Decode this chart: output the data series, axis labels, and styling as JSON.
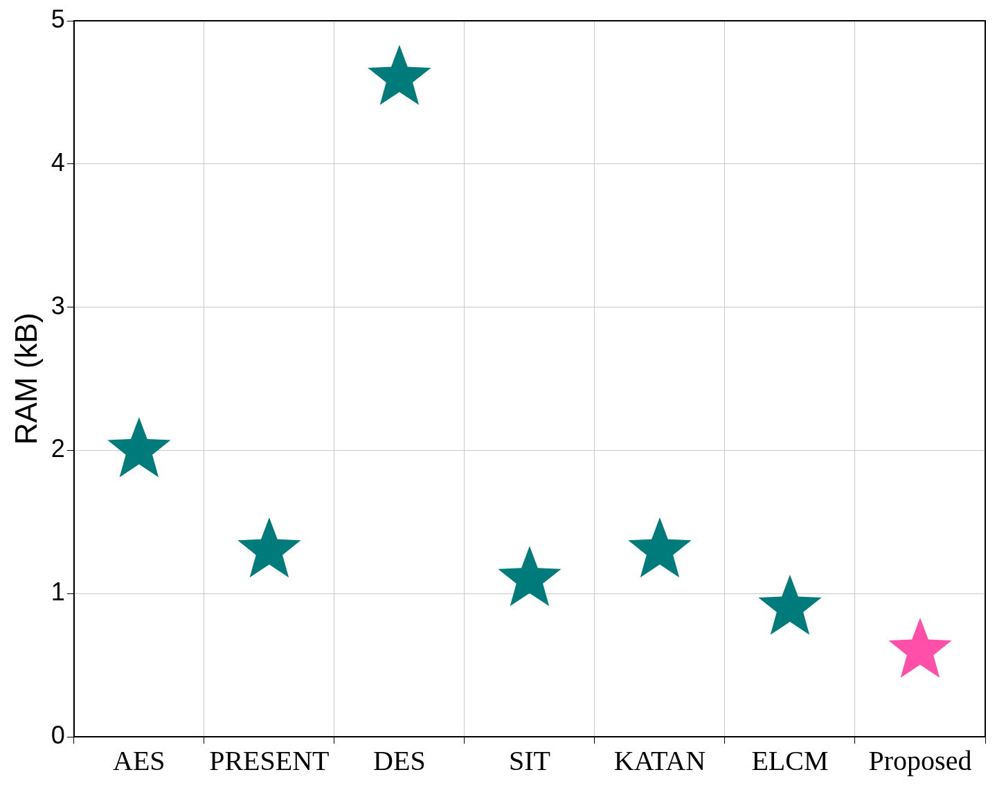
{
  "chart_data": {
    "type": "scatter",
    "ylabel": "RAM (kB)",
    "categories": [
      "AES",
      "PRESENT",
      "DES",
      "SIT",
      "KATAN",
      "ELCM",
      "Proposed"
    ],
    "values": [
      2.0,
      1.3,
      4.6,
      1.1,
      1.3,
      0.9,
      0.6
    ],
    "colors": [
      "#007b7b",
      "#007b7b",
      "#007b7b",
      "#007b7b",
      "#007b7b",
      "#007b7b",
      "#ff4fa8"
    ],
    "ylim": [
      0,
      5
    ],
    "yticks": [
      0,
      1,
      2,
      3,
      4,
      5
    ],
    "grid": true,
    "marker": "star",
    "legend": false
  }
}
